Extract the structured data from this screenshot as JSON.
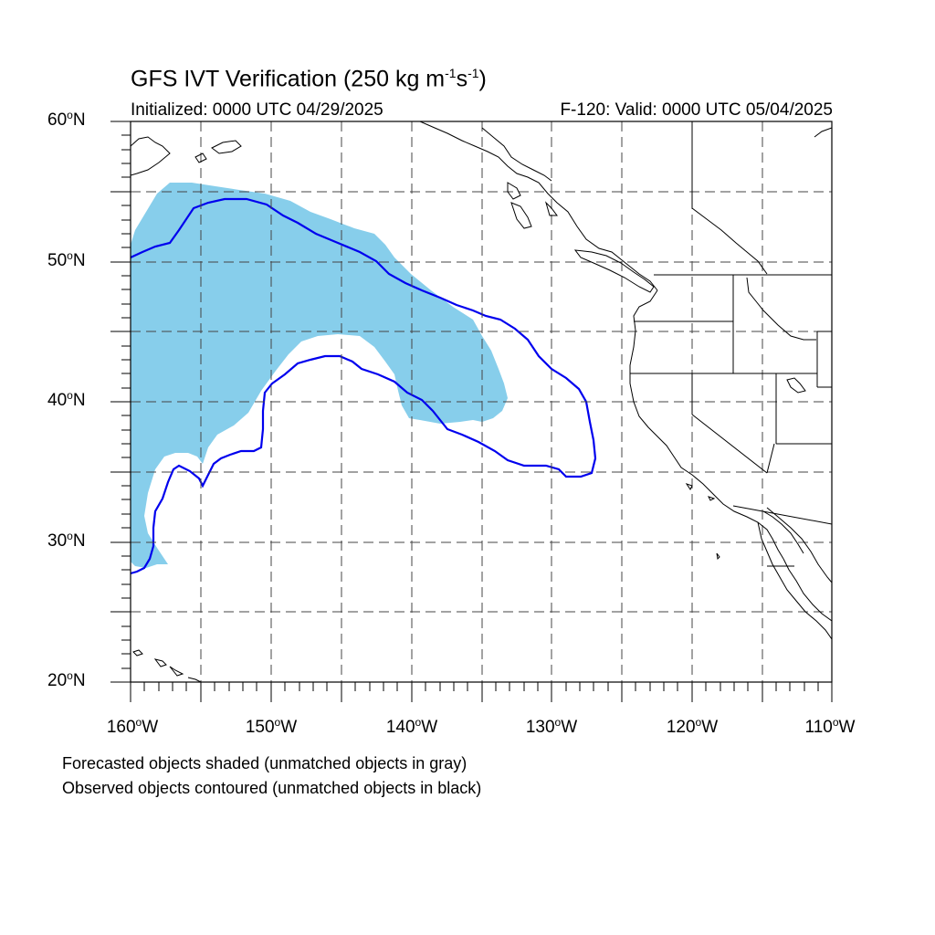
{
  "title": {
    "prefix": "GFS IVT Verification (250 kg m",
    "exp1": "-1",
    "mid": "s",
    "exp2": "-1",
    "suffix": ")"
  },
  "initialized": "Initialized: 0000 UTC 04/29/2025",
  "valid": "F-120: Valid: 0000 UTC 05/04/2025",
  "lat_labels": [
    {
      "num": "60",
      "hem": "N"
    },
    {
      "num": "50",
      "hem": "N"
    },
    {
      "num": "40",
      "hem": "N"
    },
    {
      "num": "30",
      "hem": "N"
    },
    {
      "num": "20",
      "hem": "N"
    }
  ],
  "lon_labels": [
    {
      "num": "160",
      "hem": "W"
    },
    {
      "num": "150",
      "hem": "W"
    },
    {
      "num": "140",
      "hem": "W"
    },
    {
      "num": "130",
      "hem": "W"
    },
    {
      "num": "120",
      "hem": "W"
    },
    {
      "num": "110",
      "hem": "W"
    }
  ],
  "notes": {
    "forecast": "Forecasted objects shaded (unmatched objects in gray)",
    "observed": "Observed objects contoured (unmatched objects in black)"
  },
  "colors": {
    "forecast_fill": "#87ceeb",
    "observed_contour": "#0000ee",
    "coast": "#000000",
    "grid": "#333333"
  },
  "map_extent": {
    "lon_min": -160,
    "lon_max": -110,
    "lat_min": 20,
    "lat_max": 60
  }
}
